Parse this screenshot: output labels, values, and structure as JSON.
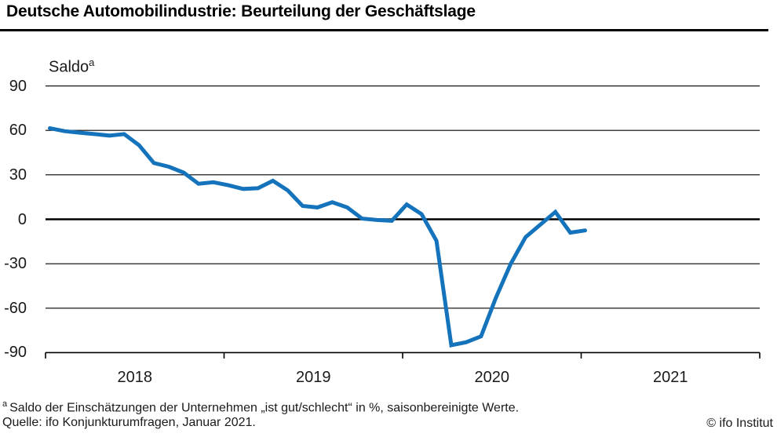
{
  "header": {
    "title": "Deutsche Automobilindustrie: Beurteilung der Geschäftslage"
  },
  "chart_data": {
    "type": "line",
    "title": "Deutsche Automobilindustrie: Beurteilung der Geschäftslage",
    "ylabel": "Saldo",
    "ylabel_sup": "a",
    "xlabel": "",
    "x": [
      "2018-01",
      "2018-02",
      "2018-03",
      "2018-04",
      "2018-05",
      "2018-06",
      "2018-07",
      "2018-08",
      "2018-09",
      "2018-10",
      "2018-11",
      "2018-12",
      "2019-01",
      "2019-02",
      "2019-03",
      "2019-04",
      "2019-05",
      "2019-06",
      "2019-07",
      "2019-08",
      "2019-09",
      "2019-10",
      "2019-11",
      "2019-12",
      "2020-01",
      "2020-02",
      "2020-03",
      "2020-04",
      "2020-05",
      "2020-06",
      "2020-07",
      "2020-08",
      "2020-09",
      "2020-10",
      "2020-11",
      "2020-12",
      "2021-01"
    ],
    "values": [
      61.5,
      59.5,
      58.5,
      57.5,
      56.5,
      57.5,
      50,
      38,
      35.5,
      31.5,
      24,
      25,
      23,
      20.5,
      21,
      26,
      19.5,
      9,
      8,
      11.5,
      8,
      0.5,
      -0.5,
      -1,
      10,
      3.5,
      -14.5,
      -85,
      -83,
      -79,
      -53,
      -30,
      -12,
      -3.5,
      5,
      -9,
      -7.5
    ],
    "y_ticks": [
      90,
      60,
      30,
      0,
      -30,
      -60,
      -90
    ],
    "x_tick_labels": [
      "2018",
      "2019",
      "2020",
      "2021"
    ],
    "ylim": [
      -90,
      90
    ],
    "grid": true,
    "legend": "none",
    "line_color": "#1573bc"
  },
  "footer": {
    "footnote_sup": "a",
    "footnote_text": "Saldo der Einschätzungen der Unternehmen „ist gut/schlecht“ in %, saisonbereinigte Werte.",
    "source": "Quelle: ifo Konjunkturumfragen, Januar 2021.",
    "copyright": "© ifo Institut"
  }
}
